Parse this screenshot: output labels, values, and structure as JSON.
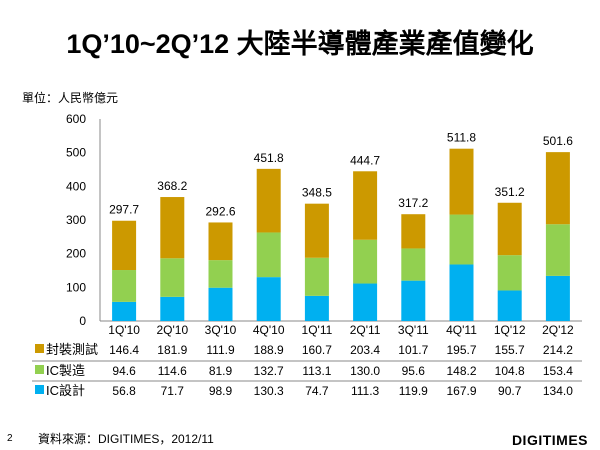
{
  "chart_data": {
    "type": "bar",
    "stacked": true,
    "title": "1Q’10~2Q’12 大陸半導體產業產值變化",
    "ylabel": "單位：人民幣億元",
    "ylim": [
      0,
      600
    ],
    "yticks": [
      "0",
      "100",
      "200",
      "300",
      "400",
      "500",
      "600"
    ],
    "categories": [
      "1Q'10",
      "2Q'10",
      "3Q'10",
      "4Q'10",
      "1Q'11",
      "2Q'11",
      "3Q'11",
      "4Q'11",
      "1Q'12",
      "2Q'12"
    ],
    "series": [
      {
        "name": "IC設計",
        "color": "#00B0F0",
        "values": [
          56.8,
          71.7,
          98.9,
          130.3,
          74.7,
          111.3,
          119.9,
          167.9,
          90.7,
          134.0
        ],
        "labels": [
          "56.8",
          "71.7",
          "98.9",
          "130.3",
          "74.7",
          "111.3",
          "119.9",
          "167.9",
          "90.7",
          "134.0"
        ]
      },
      {
        "name": "IC製造",
        "color": "#92D050",
        "values": [
          94.6,
          114.6,
          81.9,
          132.7,
          113.1,
          130.0,
          95.6,
          148.2,
          104.8,
          153.4
        ],
        "labels": [
          "94.6",
          "114.6",
          "81.9",
          "132.7",
          "113.1",
          "130.0",
          "95.6",
          "148.2",
          "104.8",
          "153.4"
        ]
      },
      {
        "name": "封裝測試",
        "color": "#CC9900",
        "values": [
          146.4,
          181.9,
          111.9,
          188.9,
          160.7,
          203.4,
          101.7,
          195.7,
          155.7,
          214.2
        ],
        "labels": [
          "146.4",
          "181.9",
          "111.9",
          "188.9",
          "160.7",
          "203.4",
          "101.7",
          "195.7",
          "155.7",
          "214.2"
        ]
      }
    ],
    "totals": [
      "297.7",
      "368.2",
      "292.6",
      "451.8",
      "348.5",
      "444.7",
      "317.2",
      "511.8",
      "351.2",
      "501.6"
    ]
  },
  "footer": {
    "source": "資料來源：DIGITIMES，2012/11",
    "page": "2",
    "logo": "DIGITIMES"
  }
}
